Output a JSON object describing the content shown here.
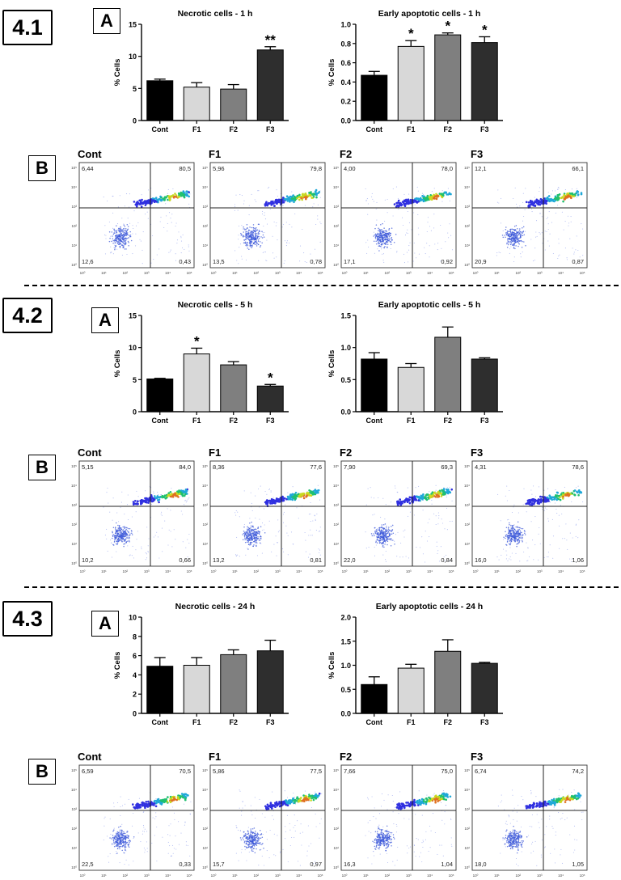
{
  "sections": [
    {
      "label": "4.1",
      "panel_a": "A",
      "panel_b": "B",
      "charts": [
        {
          "type": "bar",
          "title": "Necrotic cells - 1 h",
          "ylabel": "% Cells",
          "categories": [
            "Cont",
            "F1",
            "F2",
            "F3"
          ],
          "values": [
            6.2,
            5.2,
            4.9,
            11.0
          ],
          "errors": [
            0.25,
            0.7,
            0.7,
            0.5
          ],
          "ylim": [
            0,
            15
          ],
          "yticks": [
            "0",
            "5",
            "10",
            "15"
          ],
          "sig": [
            "",
            "",
            "",
            "**"
          ]
        },
        {
          "type": "bar",
          "title": "Early apoptotic cells - 1 h",
          "ylabel": "% Cells",
          "categories": [
            "Cont",
            "F1",
            "F2",
            "F3"
          ],
          "values": [
            0.47,
            0.77,
            0.89,
            0.81
          ],
          "errors": [
            0.04,
            0.06,
            0.02,
            0.06
          ],
          "ylim": [
            0,
            1.0
          ],
          "yticks": [
            "0.0",
            "0.2",
            "0.4",
            "0.6",
            "0.8",
            "1.0"
          ],
          "sig": [
            "",
            "*",
            "*",
            "*"
          ]
        }
      ],
      "plots": [
        {
          "name": "Cont",
          "ul": "6,44",
          "ur": "80,5",
          "ll": "12,6",
          "lr": "0,43"
        },
        {
          "name": "F1",
          "ul": "5,96",
          "ur": "79,8",
          "ll": "13,5",
          "lr": "0,78"
        },
        {
          "name": "F2",
          "ul": "4,00",
          "ur": "78,0",
          "ll": "17,1",
          "lr": "0,92"
        },
        {
          "name": "F3",
          "ul": "12,1",
          "ur": "66,1",
          "ll": "20,9",
          "lr": "0,87"
        }
      ]
    },
    {
      "label": "4.2",
      "panel_a": "A",
      "panel_b": "B",
      "charts": [
        {
          "type": "bar",
          "title": "Necrotic cells - 5 h",
          "ylabel": "% Cells",
          "categories": [
            "Cont",
            "F1",
            "F2",
            "F3"
          ],
          "values": [
            5.1,
            9.0,
            7.3,
            4.0
          ],
          "errors": [
            0.1,
            0.9,
            0.5,
            0.25
          ],
          "ylim": [
            0,
            15
          ],
          "yticks": [
            "0",
            "5",
            "10",
            "15"
          ],
          "sig": [
            "",
            "*",
            "",
            "*"
          ]
        },
        {
          "type": "bar",
          "title": "Early apoptotic cells - 5 h",
          "ylabel": "% Cells",
          "categories": [
            "Cont",
            "F1",
            "F2",
            "F3"
          ],
          "values": [
            0.82,
            0.69,
            1.16,
            0.82
          ],
          "errors": [
            0.1,
            0.06,
            0.16,
            0.02
          ],
          "ylim": [
            0,
            1.5
          ],
          "yticks": [
            "0.0",
            "0.5",
            "1.0",
            "1.5"
          ],
          "sig": [
            "",
            "",
            "",
            ""
          ]
        }
      ],
      "plots": [
        {
          "name": "Cont",
          "ul": "5,15",
          "ur": "84,0",
          "ll": "10,2",
          "lr": "0,66"
        },
        {
          "name": "F1",
          "ul": "8,36",
          "ur": "77,6",
          "ll": "13,2",
          "lr": "0,81"
        },
        {
          "name": "F2",
          "ul": "7,90",
          "ur": "69,3",
          "ll": "22,0",
          "lr": "0,84"
        },
        {
          "name": "F3",
          "ul": "4,31",
          "ur": "78,6",
          "ll": "16,0",
          "lr": "1,06"
        }
      ]
    },
    {
      "label": "4.3",
      "panel_a": "A",
      "panel_b": "B",
      "charts": [
        {
          "type": "bar",
          "title": "Necrotic cells - 24 h",
          "ylabel": "% Cells",
          "categories": [
            "Cont",
            "F1",
            "F2",
            "F3"
          ],
          "values": [
            4.9,
            5.0,
            6.1,
            6.5
          ],
          "errors": [
            0.9,
            0.8,
            0.5,
            1.1
          ],
          "ylim": [
            0,
            10
          ],
          "yticks": [
            "0",
            "2",
            "4",
            "6",
            "8",
            "10"
          ],
          "sig": [
            "",
            "",
            "",
            ""
          ]
        },
        {
          "type": "bar",
          "title": "Early apoptotic cells - 24 h",
          "ylabel": "% Cells",
          "categories": [
            "Cont",
            "F1",
            "F2",
            "F3"
          ],
          "values": [
            0.6,
            0.94,
            1.29,
            1.04
          ],
          "errors": [
            0.16,
            0.08,
            0.24,
            0.02
          ],
          "ylim": [
            0,
            2.0
          ],
          "yticks": [
            "0.0",
            "0.5",
            "1.0",
            "1.5",
            "2.0"
          ],
          "sig": [
            "",
            "",
            "",
            ""
          ]
        }
      ],
      "plots": [
        {
          "name": "Cont",
          "ul": "6,59",
          "ur": "70,5",
          "ll": "22,5",
          "lr": "0,33"
        },
        {
          "name": "F1",
          "ul": "5,86",
          "ur": "77,5",
          "ll": "15,7",
          "lr": "0,97"
        },
        {
          "name": "F2",
          "ul": "7,66",
          "ur": "75,0",
          "ll": "16,3",
          "lr": "1,04"
        },
        {
          "name": "F3",
          "ul": "6,74",
          "ur": "74,2",
          "ll": "18,0",
          "lr": "1,05"
        }
      ]
    }
  ],
  "axis_tick_labels": [
    "10⁰",
    "10¹",
    "10²",
    "10³",
    "10⁴",
    "10⁵"
  ],
  "colors": {
    "Cont": "#000000",
    "F1": "#d8d8d8",
    "F2": "#7f7f7f",
    "F3": "#2e2e2e"
  },
  "chart_data": [
    {
      "type": "bar",
      "title": "Necrotic cells - 1 h",
      "ylabel": "% Cells",
      "categories": [
        "Cont",
        "F1",
        "F2",
        "F3"
      ],
      "values": [
        6.2,
        5.2,
        4.9,
        11.0
      ],
      "ylim": [
        0,
        15
      ]
    },
    {
      "type": "bar",
      "title": "Early apoptotic cells - 1 h",
      "ylabel": "% Cells",
      "categories": [
        "Cont",
        "F1",
        "F2",
        "F3"
      ],
      "values": [
        0.47,
        0.77,
        0.89,
        0.81
      ],
      "ylim": [
        0,
        1.0
      ]
    },
    {
      "type": "bar",
      "title": "Necrotic cells - 5 h",
      "ylabel": "% Cells",
      "categories": [
        "Cont",
        "F1",
        "F2",
        "F3"
      ],
      "values": [
        5.1,
        9.0,
        7.3,
        4.0
      ],
      "ylim": [
        0,
        15
      ]
    },
    {
      "type": "bar",
      "title": "Early apoptotic cells - 5 h",
      "ylabel": "% Cells",
      "categories": [
        "Cont",
        "F1",
        "F2",
        "F3"
      ],
      "values": [
        0.82,
        0.69,
        1.16,
        0.82
      ],
      "ylim": [
        0,
        1.5
      ]
    },
    {
      "type": "bar",
      "title": "Necrotic cells - 24 h",
      "ylabel": "% Cells",
      "categories": [
        "Cont",
        "F1",
        "F2",
        "F3"
      ],
      "values": [
        4.9,
        5.0,
        6.1,
        6.5
      ],
      "ylim": [
        0,
        10
      ]
    },
    {
      "type": "bar",
      "title": "Early apoptotic cells - 24 h",
      "ylabel": "% Cells",
      "categories": [
        "Cont",
        "F1",
        "F2",
        "F3"
      ],
      "values": [
        0.6,
        0.94,
        1.29,
        1.04
      ],
      "ylim": [
        0,
        2.0
      ]
    }
  ]
}
